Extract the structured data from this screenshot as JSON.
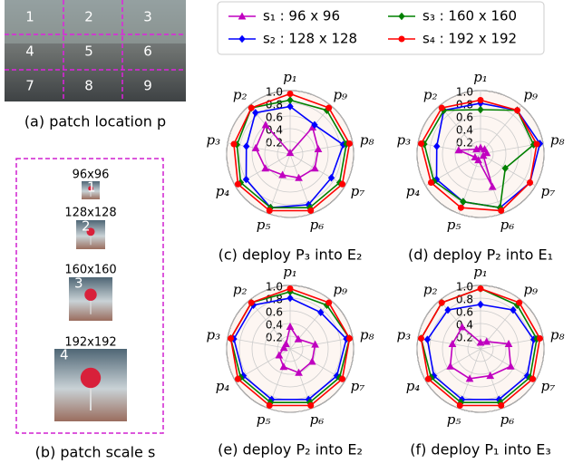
{
  "patch_location": {
    "caption": "(a) patch location p",
    "cells": [
      "1",
      "2",
      "3",
      "4",
      "5",
      "6",
      "7",
      "8",
      "9"
    ]
  },
  "patch_scale": {
    "caption": "(b) patch scale s",
    "items": [
      {
        "label": "96x96",
        "index": "1"
      },
      {
        "label": "128x128",
        "index": "2"
      },
      {
        "label": "160x160",
        "index": "3"
      },
      {
        "label": "192x192",
        "index": "4"
      }
    ]
  },
  "chart_data": [
    {
      "type": "radar",
      "title": "(c) deploy P₃ into E₂",
      "categories": [
        "p₁",
        "p₉",
        "p₈",
        "p₇",
        "p₆",
        "p₅",
        "p₄",
        "p₃",
        "p₂"
      ],
      "rlim": [
        0,
        1
      ],
      "rticks": [
        0.2,
        0.4,
        0.6,
        0.8,
        {
          "value": 1,
          "label": "1.0"
        }
      ],
      "series": [
        {
          "name": "s₁ : 96 x 96",
          "color": "#c000c0",
          "values": [
            0.02,
            0.55,
            0.45,
            0.45,
            0.4,
            0.35,
            0.45,
            0.55,
            0.6
          ]
        },
        {
          "name": "s₂ : 128 x 128",
          "color": "#0000ff",
          "values": [
            0.75,
            0.6,
            0.85,
            0.75,
            0.85,
            0.9,
            0.8,
            0.7,
            0.85
          ]
        },
        {
          "name": "s₃ : 160 x 160",
          "color": "#008000",
          "values": [
            0.85,
            0.9,
            0.9,
            0.9,
            0.9,
            0.9,
            0.9,
            0.85,
            0.95
          ]
        },
        {
          "name": "s₄ : 192 x 192",
          "color": "#ff0000",
          "values": [
            0.95,
            0.95,
            0.95,
            0.95,
            0.95,
            0.95,
            0.95,
            0.9,
            0.95
          ]
        }
      ]
    },
    {
      "type": "radar",
      "title": "(d) deploy P₂ into E₁",
      "categories": [
        "p₁",
        "p₉",
        "p₈",
        "p₇",
        "p₆",
        "p₅",
        "p₄",
        "p₃",
        "p₂"
      ],
      "rlim": [
        0,
        1
      ],
      "rticks": [
        0.2,
        0.4,
        0.6,
        0.8,
        {
          "value": 1,
          "label": "1.0"
        }
      ],
      "series": [
        {
          "color": "#c000c0",
          "values": [
            0.1,
            0.1,
            0.1,
            0.05,
            0.55,
            0.1,
            0.1,
            0.35,
            0.1
          ]
        },
        {
          "color": "#0000ff",
          "values": [
            0.8,
            0.9,
            0.95,
            0.9,
            0.9,
            0.8,
            0.8,
            0.7,
            0.9
          ]
        },
        {
          "color": "#008000",
          "values": [
            0.7,
            0.9,
            0.85,
            0.45,
            0.9,
            0.8,
            0.85,
            0.9,
            0.9
          ]
        },
        {
          "color": "#ff0000",
          "values": [
            0.85,
            0.9,
            0.9,
            0.9,
            0.95,
            0.9,
            0.9,
            0.95,
            0.95
          ]
        }
      ]
    },
    {
      "type": "radar",
      "title": "(e) deploy P₂ into E₂",
      "categories": [
        "p₁",
        "p₉",
        "p₈",
        "p₇",
        "p₆",
        "p₅",
        "p₄",
        "p₃",
        "p₂"
      ],
      "rlim": [
        0,
        1
      ],
      "rticks": [
        0.2,
        0.4,
        0.6,
        0.8,
        {
          "value": 1,
          "label": "1.0"
        }
      ],
      "series": [
        {
          "color": "#c000c0",
          "values": [
            0.35,
            0.2,
            0.4,
            0.4,
            0.4,
            0.3,
            0.2,
            0.1,
            0.1
          ]
        },
        {
          "color": "#0000ff",
          "values": [
            0.8,
            0.75,
            0.9,
            0.85,
            0.85,
            0.85,
            0.85,
            0.9,
            0.9
          ]
        },
        {
          "color": "#008000",
          "values": [
            0.9,
            0.9,
            0.95,
            0.9,
            0.9,
            0.9,
            0.9,
            0.95,
            0.95
          ]
        },
        {
          "color": "#ff0000",
          "values": [
            0.95,
            0.95,
            0.95,
            0.95,
            0.95,
            0.95,
            0.95,
            0.95,
            0.95
          ]
        }
      ]
    },
    {
      "type": "radar",
      "title": "(f) deploy P₁ into E₃",
      "categories": [
        "p₁",
        "p₉",
        "p₈",
        "p₇",
        "p₆",
        "p₅",
        "p₄",
        "p₃",
        "p₂"
      ],
      "rlim": [
        0,
        1
      ],
      "rticks": [
        0.2,
        0.4,
        0.6,
        0.8,
        {
          "value": 1,
          "label": "1.0"
        }
      ],
      "series": [
        {
          "color": "#c000c0",
          "values": [
            0.1,
            0.15,
            0.45,
            0.55,
            0.45,
            0.5,
            0.55,
            0.45,
            0.45
          ]
        },
        {
          "color": "#0000ff",
          "values": [
            0.7,
            0.8,
            0.85,
            0.85,
            0.85,
            0.85,
            0.85,
            0.85,
            0.8
          ]
        },
        {
          "color": "#008000",
          "values": [
            0.95,
            0.9,
            0.9,
            0.9,
            0.9,
            0.9,
            0.9,
            0.95,
            0.95
          ]
        },
        {
          "color": "#ff0000",
          "values": [
            0.95,
            0.95,
            0.95,
            0.95,
            0.95,
            0.95,
            0.95,
            0.95,
            0.95
          ]
        }
      ]
    }
  ]
}
